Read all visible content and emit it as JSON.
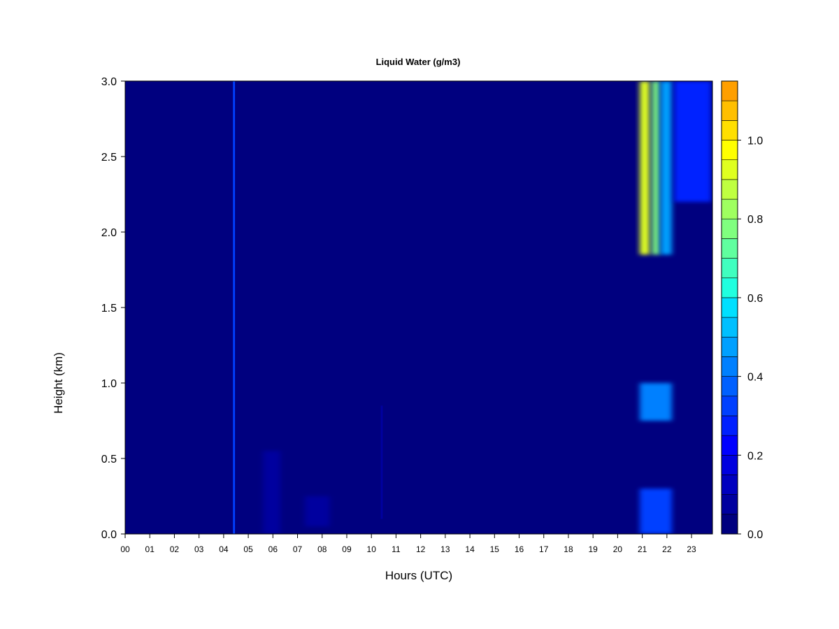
{
  "chart_data": {
    "type": "heatmap",
    "title": "Liquid Water (g/m3)",
    "xlabel": "Hours (UTC)",
    "ylabel": "Height (km)",
    "x_tick_labels": [
      "00",
      "01",
      "02",
      "03",
      "04",
      "05",
      "06",
      "07",
      "08",
      "09",
      "10",
      "11",
      "12",
      "13",
      "14",
      "15",
      "16",
      "17",
      "18",
      "19",
      "20",
      "21",
      "22",
      "23"
    ],
    "y_tick_labels": [
      "0.0",
      "0.5",
      "1.0",
      "1.5",
      "2.0",
      "2.5",
      "3.0"
    ],
    "y_ticks": [
      0.0,
      0.5,
      1.0,
      1.5,
      2.0,
      2.5,
      3.0
    ],
    "xlim": [
      0,
      23.85
    ],
    "ylim": [
      0,
      3.0
    ],
    "colorbar": {
      "tick_labels": [
        "0.0",
        "0.2",
        "0.4",
        "0.6",
        "0.8",
        "1.0"
      ],
      "ticks": [
        0.0,
        0.2,
        0.4,
        0.6,
        0.8,
        1.0
      ],
      "range": [
        0.0,
        1.15
      ],
      "level_step": 0.05,
      "colors": [
        "#00007f",
        "#00009f",
        "#0000bf",
        "#0000df",
        "#0000ff",
        "#0020ff",
        "#0040ff",
        "#0060ff",
        "#0080ff",
        "#00a0ff",
        "#00c0ff",
        "#00e0ff",
        "#20ffdf",
        "#40ffbf",
        "#60ff9f",
        "#80ff7f",
        "#9fff60",
        "#bfff40",
        "#dfff20",
        "#ffff00",
        "#ffdf00",
        "#ffbf00",
        "#ff9f00",
        "#ff8000",
        "#ff6000",
        "#ff4000",
        "#ff2000",
        "#e00000",
        "#b00000",
        "#800000"
      ]
    },
    "features": [
      {
        "x_start": 4.38,
        "x_end": 4.46,
        "y_start": 0.0,
        "y_end": 3.0,
        "value": 0.35
      },
      {
        "x_start": 5.6,
        "x_end": 6.3,
        "y_start": 0.0,
        "y_end": 0.55,
        "value": 0.07
      },
      {
        "x_start": 7.3,
        "x_end": 8.3,
        "y_start": 0.05,
        "y_end": 0.25,
        "value": 0.05
      },
      {
        "x_start": 10.38,
        "x_end": 10.46,
        "y_start": 0.1,
        "y_end": 0.85,
        "value": 0.07
      },
      {
        "x_start": 20.9,
        "x_end": 21.3,
        "y_start": 1.85,
        "y_end": 3.0,
        "value": 0.9
      },
      {
        "x_start": 21.4,
        "x_end": 21.7,
        "y_start": 1.85,
        "y_end": 3.0,
        "value": 0.75
      },
      {
        "x_start": 21.75,
        "x_end": 22.2,
        "y_start": 1.85,
        "y_end": 3.0,
        "value": 0.45
      },
      {
        "x_start": 20.9,
        "x_end": 22.2,
        "y_start": 0.75,
        "y_end": 1.0,
        "value": 0.4
      },
      {
        "x_start": 20.9,
        "x_end": 22.2,
        "y_start": 0.0,
        "y_end": 0.3,
        "value": 0.35
      },
      {
        "x_start": 22.3,
        "x_end": 23.8,
        "y_start": 2.2,
        "y_end": 3.0,
        "value": 0.25
      }
    ]
  }
}
